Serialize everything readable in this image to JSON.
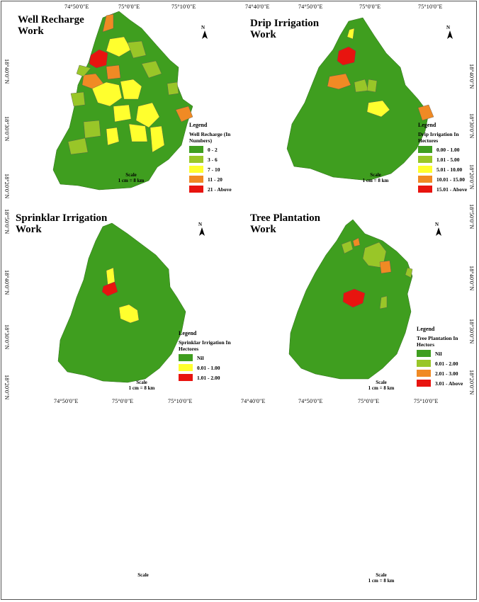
{
  "colors": {
    "green": "#3f9e1f",
    "light_green": "#99c628",
    "yellow": "#ffff2e",
    "orange": "#f08a24",
    "red": "#e8140f"
  },
  "coordinates": {
    "top": [
      "74°50'0\"E",
      "75°0'0\"E",
      "75°10'0\"E",
      "74°40'0\"E",
      "74°50'0\"E",
      "75°0'0\"E",
      "75°10'0\"E"
    ],
    "middle": [
      "74°50'0\"E",
      "75°0'0\"E",
      "75°10'0\"E",
      "74°40'0\"E",
      "74°50'0\"E",
      "75°0'0\"E",
      "75°10'0\"E"
    ],
    "left": [
      "18°40'0\"N",
      "18°30'0\"N",
      "18°20'0\"N",
      "18°50'0\"N",
      "18°40'0\"N",
      "18°30'0\"N",
      "18°20'0\"N"
    ],
    "right": [
      "18°40'0\"N",
      "18°30'0\"N",
      "18°20'0\"N",
      "18°50'0\"N",
      "18°40'0\"N",
      "18°30'0\"N",
      "18°20'0\"N"
    ]
  },
  "maps": [
    {
      "title": "Well Recharge Work",
      "north": "N",
      "legend": {
        "heading": "Legend",
        "subtitle": "Well Recharge (In Numbers)",
        "classes": [
          {
            "label": "0 - 2",
            "color": "#3f9e1f"
          },
          {
            "label": "3 - 6",
            "color": "#99c628"
          },
          {
            "label": "7 - 10",
            "color": "#ffff2e"
          },
          {
            "label": "11 - 20",
            "color": "#f08a24"
          },
          {
            "label": "21 - Above",
            "color": "#e8140f"
          }
        ]
      },
      "scale": {
        "label": "Scale",
        "value": "1 cm = 8 km"
      }
    },
    {
      "title": "Drip Irrigation Work",
      "north": "N",
      "legend": {
        "heading": "Legend",
        "subtitle": "Drip Irrigation In Hectores",
        "classes": [
          {
            "label": "0.00 - 1.00",
            "color": "#3f9e1f"
          },
          {
            "label": "1.01 - 5.00",
            "color": "#99c628"
          },
          {
            "label": "5.01 - 10.00",
            "color": "#ffff2e"
          },
          {
            "label": "10.01 - 15.00",
            "color": "#f08a24"
          },
          {
            "label": "15.01 - Above",
            "color": "#e8140f"
          }
        ]
      },
      "scale": {
        "label": "Scale",
        "value": "1 cm = 8 km"
      }
    },
    {
      "title": "Sprinklar Irrigation Work",
      "north": "N",
      "legend": {
        "heading": "Legend",
        "subtitle": "Sprinklar Irrigation In Hectores",
        "classes": [
          {
            "label": "Nil",
            "color": "#3f9e1f"
          },
          {
            "label": "0.01 - 1.00",
            "color": "#ffff2e"
          },
          {
            "label": "1.01 - 2.00",
            "color": "#e8140f"
          }
        ]
      },
      "scale": {
        "label": "Scale",
        "value": "1 cm = 8 km"
      }
    },
    {
      "title": "Tree Plantation Work",
      "north": "N",
      "legend": {
        "heading": "Legend",
        "subtitle": "Tree Plantation In Hectors",
        "classes": [
          {
            "label": "Nil",
            "color": "#3f9e1f"
          },
          {
            "label": "0.01 - 2.00",
            "color": "#99c628"
          },
          {
            "label": "2.01 - 3.00",
            "color": "#f08a24"
          },
          {
            "label": "3.01 - Above",
            "color": "#e8140f"
          }
        ]
      },
      "scale": {
        "label": "Scale",
        "value": "1 cm = 8 km"
      }
    }
  ],
  "footer": {
    "left_scale": "Scale",
    "right_scale": "Scale",
    "right_scale_value": "1 cm = 8 km"
  }
}
